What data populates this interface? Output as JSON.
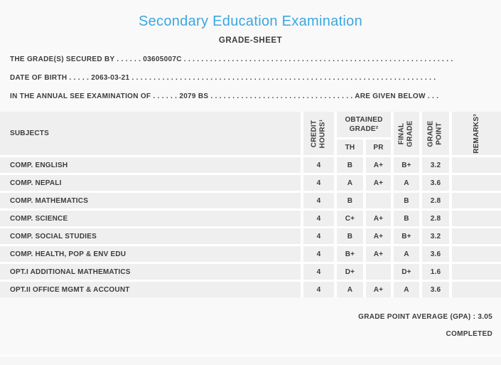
{
  "page": {
    "accent_color": "#3ba7e0",
    "text_color": "#3d3c3b",
    "cell_bg_color": "#efefef",
    "bg_color": "#f9f9f9"
  },
  "header": {
    "title": "Secondary Education Examination",
    "subtitle": "GRADE-SHEET"
  },
  "info_lines": {
    "secured_by": "THE GRADE(S) SECURED BY . . . . . . 03605007C . . . . . . . . . . . . . . . . . . . . . . . . . . . . . . . . . . . . . . . . . . . . . . . . . . . . . . . . . . . . . .",
    "date_of_birth": "DATE OF BIRTH . . . . . 2063-03-21 . . . . . . . . . . . . . . . . . . . . . . . . . . . . . . . . . . . . . . . . . . . . . . . . . . . . . . . . . . . . . . . . . . . . . .",
    "examination": "IN THE ANNUAL SEE EXAMINATION OF . . . . . . 2079 BS . . . . . . . . . . . . . . . . . . . . . . . . . . . . . . . . . ARE GIVEN BELOW . . ."
  },
  "table": {
    "headers": {
      "subjects": "SUBJECTS",
      "credit_hours": "CREDIT\nHOURS¹",
      "obtained_grade": "OBTAINED\nGRADE²",
      "th": "TH",
      "pr": "PR",
      "final_grade": "FINAL\nGRADE",
      "grade_point": "GRADE\nPOINT",
      "remarks": "REMARKS³"
    },
    "rows": [
      {
        "subject": "COMP. ENGLISH",
        "credit": "4",
        "th": "B",
        "pr": "A+",
        "final": "B+",
        "gp": "3.2",
        "remarks": ""
      },
      {
        "subject": "COMP. NEPALI",
        "credit": "4",
        "th": "A",
        "pr": "A+",
        "final": "A",
        "gp": "3.6",
        "remarks": ""
      },
      {
        "subject": "COMP. MATHEMATICS",
        "credit": "4",
        "th": "B",
        "pr": "",
        "final": "B",
        "gp": "2.8",
        "remarks": ""
      },
      {
        "subject": "COMP. SCIENCE",
        "credit": "4",
        "th": "C+",
        "pr": "A+",
        "final": "B",
        "gp": "2.8",
        "remarks": ""
      },
      {
        "subject": "COMP. SOCIAL STUDIES",
        "credit": "4",
        "th": "B",
        "pr": "A+",
        "final": "B+",
        "gp": "3.2",
        "remarks": ""
      },
      {
        "subject": "COMP. HEALTH, POP & ENV EDU",
        "credit": "4",
        "th": "B+",
        "pr": "A+",
        "final": "A",
        "gp": "3.6",
        "remarks": ""
      },
      {
        "subject": "OPT.I ADDITIONAL MATHEMATICS",
        "credit": "4",
        "th": "D+",
        "pr": "",
        "final": "D+",
        "gp": "1.6",
        "remarks": ""
      },
      {
        "subject": "OPT.II OFFICE MGMT & ACCOUNT",
        "credit": "4",
        "th": "A",
        "pr": "A+",
        "final": "A",
        "gp": "3.6",
        "remarks": ""
      }
    ]
  },
  "footer": {
    "gpa_line": "GRADE POINT AVERAGE (GPA) : 3.05",
    "status": "COMPLETED"
  }
}
